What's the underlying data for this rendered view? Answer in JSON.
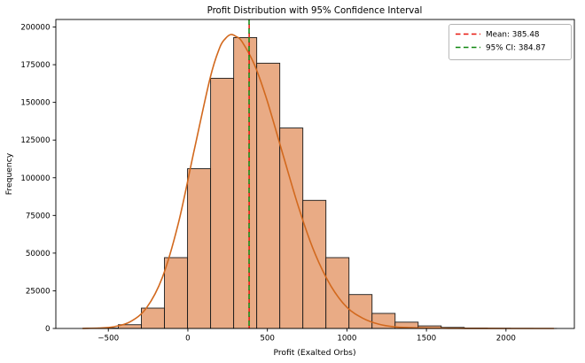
{
  "figure": {
    "background": "#ffffff"
  },
  "chart_data": {
    "type": "bar",
    "subtype": "histogram_with_kde",
    "title": "Profit Distribution with 95% Confidence Interval",
    "xlabel": "Profit (Exalted Orbs)",
    "ylabel": "Frequency",
    "xlim": [
      -830,
      2430
    ],
    "ylim": [
      0,
      205000
    ],
    "grid": false,
    "x_tick_values": [
      -500,
      0,
      500,
      1000,
      1500,
      2000
    ],
    "x_tick_labels": [
      "−500",
      "0",
      "500",
      "1000",
      "1500",
      "2000"
    ],
    "y_tick_values": [
      0,
      25000,
      50000,
      75000,
      100000,
      125000,
      150000,
      175000,
      200000
    ],
    "y_tick_labels": [
      "0",
      "25000",
      "50000",
      "75000",
      "100000",
      "125000",
      "150000",
      "175000",
      "200000"
    ],
    "histogram": {
      "bin_start": -582,
      "bin_width": 145,
      "counts": [
        250,
        2500,
        13500,
        47000,
        106000,
        166000,
        193000,
        176000,
        133000,
        85000,
        47000,
        22500,
        10000,
        4200,
        1700,
        700,
        300,
        130,
        60,
        25
      ],
      "fill_color": "#e9ab85",
      "edge_color": "#1a1a1a"
    },
    "kde_curve": {
      "color": "#d2691e",
      "points": [
        [
          -660,
          80
        ],
        [
          -560,
          290
        ],
        [
          -460,
          1260
        ],
        [
          -360,
          4580
        ],
        [
          -260,
          13700
        ],
        [
          -160,
          33900
        ],
        [
          -60,
          69700
        ],
        [
          40,
          118300
        ],
        [
          140,
          166200
        ],
        [
          200,
          186200
        ],
        [
          235,
          192200
        ],
        [
          270,
          195000
        ],
        [
          305,
          193600
        ],
        [
          340,
          190400
        ],
        [
          420,
          174700
        ],
        [
          500,
          150600
        ],
        [
          600,
          114600
        ],
        [
          700,
          79100
        ],
        [
          800,
          49500
        ],
        [
          900,
          28100
        ],
        [
          1000,
          14050
        ],
        [
          1100,
          6800
        ],
        [
          1200,
          2880
        ],
        [
          1300,
          1070
        ],
        [
          1400,
          500
        ],
        [
          1500,
          260
        ],
        [
          1600,
          150
        ],
        [
          1700,
          90
        ],
        [
          1800,
          55
        ],
        [
          1900,
          35
        ],
        [
          2000,
          22
        ],
        [
          2100,
          14
        ],
        [
          2200,
          8
        ],
        [
          2300,
          5
        ]
      ]
    },
    "annotations": {
      "mean_line": {
        "value": 385.48,
        "color": "#e8160d",
        "linestyle": "dashed"
      },
      "ci_line": {
        "value": 384.87,
        "color": "#0f870f",
        "linestyle": "dashed"
      }
    },
    "legend": {
      "position": "upper right",
      "entries": [
        {
          "label": "Mean: 385.48",
          "color": "#e8160d",
          "linestyle": "dashed"
        },
        {
          "label": "95% CI: 384.87",
          "color": "#0f870f",
          "linestyle": "dashed"
        }
      ]
    }
  }
}
